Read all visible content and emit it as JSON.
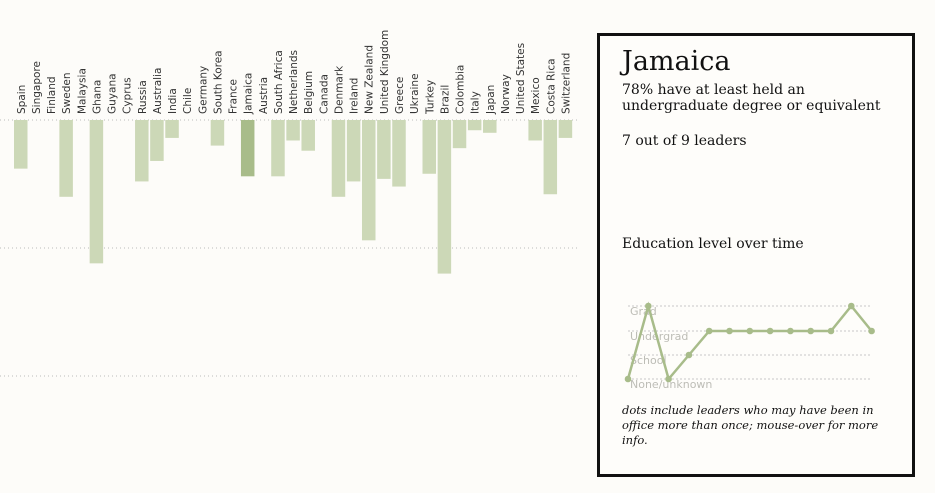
{
  "chart_data": [
    {
      "type": "bar",
      "categories": [
        "Spain",
        "Singapore",
        "Finland",
        "Sweden",
        "Malaysia",
        "Ghana",
        "Guyana",
        "Cyprus",
        "Russia",
        "Australia",
        "India",
        "Chile",
        "Germany",
        "South Korea",
        "France",
        "Jamaica",
        "Austria",
        "South Africa",
        "Netherlands",
        "Belgium",
        "Canada",
        "Denmark",
        "Ireland",
        "New Zealand",
        "United Kingdom",
        "Greece",
        "Ukraine",
        "Turkey",
        "Brazil",
        "Colombia",
        "Italy",
        "Japan",
        "Norway",
        "United States",
        "Mexico",
        "Costa Rica",
        "Switzerland"
      ],
      "values": [
        81,
        100,
        100,
        70,
        100,
        44,
        100,
        100,
        76,
        84,
        93,
        100,
        100,
        90,
        100,
        78,
        100,
        78,
        92,
        88,
        100,
        70,
        76,
        53,
        77,
        74,
        100,
        79,
        40,
        89,
        96,
        95,
        100,
        100,
        92,
        71,
        93
      ],
      "no_data": [
        "Singapore",
        "Malaysia",
        "Ukraine"
      ],
      "highlighted": "Jamaica",
      "ylim": [
        0,
        100
      ],
      "colors": {
        "bar": "#ccd8b7",
        "highlight": "#a8bc8a",
        "no_data": "#e2e2e2",
        "grid": "#bbbbbb"
      }
    },
    {
      "type": "line",
      "title": "Education level over time",
      "levels": [
        "None/unknown",
        "School",
        "Undergrad",
        "Grad"
      ],
      "values": [
        0,
        3,
        0,
        1,
        2,
        2,
        2,
        2,
        2,
        2,
        2,
        3,
        2
      ],
      "colors": {
        "line": "#a8bc8a",
        "grid": "#c8c8c8",
        "label": "#bdbdb6"
      }
    }
  ],
  "panel": {
    "country": "Jamaica",
    "stat_line_1": "78% have at least held an undergraduate degree or equivalent",
    "stat_line_2": "7 out of 9 leaders",
    "subhead": "Education level over time",
    "footnote": "dots include leaders who may have been in office more than once; mouse-over for more info."
  }
}
